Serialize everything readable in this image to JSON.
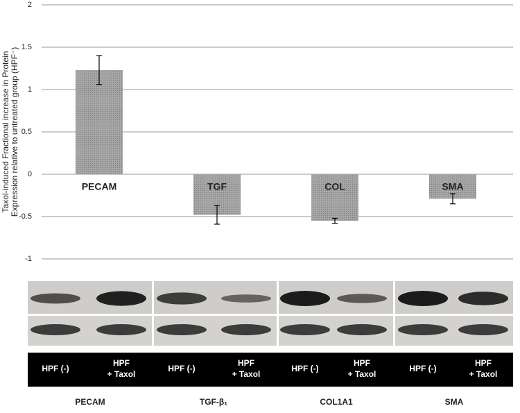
{
  "chart_data": {
    "type": "bar",
    "ylabel": [
      "Taxol-induced Fractional increase in Protein",
      "Expression relative to untreated group (HPF⁻)"
    ],
    "categories": [
      "PECAM",
      "TGF",
      "COL",
      "SMA"
    ],
    "values": [
      1.23,
      -0.48,
      -0.55,
      -0.29
    ],
    "errors": [
      0.17,
      0.11,
      0.03,
      0.06
    ],
    "color": "#8c8c8c",
    "ylim": [
      -1,
      2
    ],
    "yticks": [
      -1,
      -0.5,
      0,
      0.5,
      1,
      1.5,
      2
    ],
    "grid": true
  },
  "blot": {
    "lane_labels": [
      [
        "HPF (-)"
      ],
      [
        "HPF",
        "+ Taxol"
      ],
      [
        "HPF (-)"
      ],
      [
        "HPF",
        "+ Taxol"
      ],
      [
        "HPF (-)"
      ],
      [
        "HPF",
        "+ Taxol"
      ],
      [
        "HPF (-)"
      ],
      [
        "HPF",
        "+ Taxol"
      ]
    ],
    "proteins": [
      "PECAM",
      "TGF-β₁",
      "COL1A1",
      "SMA"
    ]
  }
}
